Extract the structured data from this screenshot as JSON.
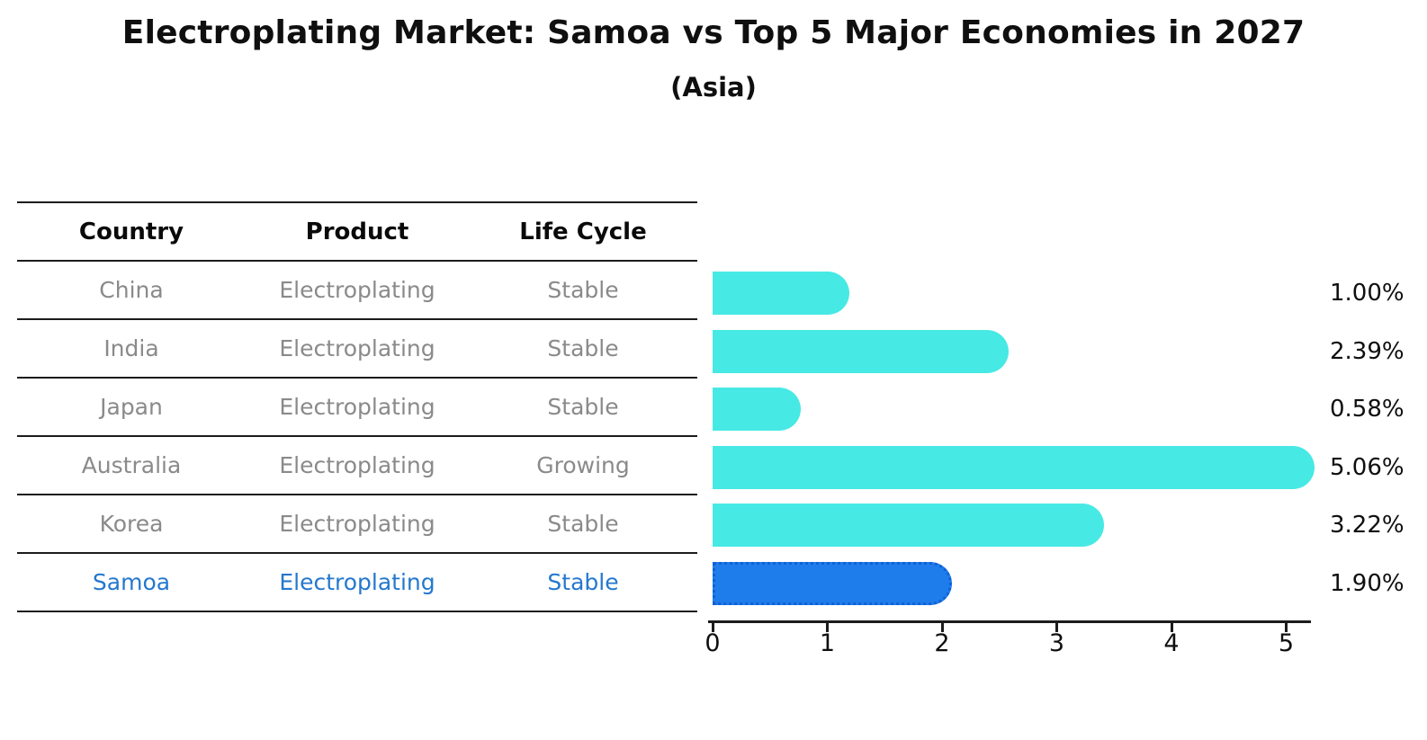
{
  "title": "Electroplating Market: Samoa vs Top 5 Major Economies in 2027",
  "subtitle": "(Asia)",
  "table": {
    "headers": [
      "Country",
      "Product",
      "Life Cycle"
    ],
    "rows": [
      {
        "country": "China",
        "product": "Electroplating",
        "life_cycle": "Stable",
        "highlight": false
      },
      {
        "country": "India",
        "product": "Electroplating",
        "life_cycle": "Stable",
        "highlight": false
      },
      {
        "country": "Japan",
        "product": "Electroplating",
        "life_cycle": "Stable",
        "highlight": false
      },
      {
        "country": "Australia",
        "product": "Electroplating",
        "life_cycle": "Growing",
        "highlight": false
      },
      {
        "country": "Korea",
        "product": "Electroplating",
        "life_cycle": "Stable",
        "highlight": false
      },
      {
        "country": "Samoa",
        "product": "Electroplating",
        "life_cycle": "Stable",
        "highlight": true
      }
    ]
  },
  "chart_data": {
    "type": "bar",
    "orientation": "horizontal",
    "title": "Electroplating Market: Samoa vs Top 5 Major Economies in 2027",
    "subtitle": "(Asia)",
    "categories": [
      "China",
      "India",
      "Japan",
      "Australia",
      "Korea",
      "Samoa"
    ],
    "values": [
      1.0,
      2.39,
      0.58,
      5.06,
      3.22,
      1.9
    ],
    "value_labels": [
      "1.00%",
      "2.39%",
      "0.58%",
      "5.06%",
      "3.22%",
      "1.90%"
    ],
    "xlabel": "",
    "ylabel": "",
    "xlim": [
      0,
      5.25
    ],
    "xticks": [
      0,
      1,
      2,
      3,
      4,
      5
    ],
    "grid": false,
    "legend": null,
    "highlight_index": 5,
    "colors": {
      "bar": "#47e9e4",
      "highlight_bar": "#1e7deb",
      "highlight_border": "#1161d6",
      "highlight_text": "#2478ce",
      "row_text": "#8a8a8a",
      "axis": "#1c1c1c",
      "label_text": "#0f0f0f"
    }
  }
}
